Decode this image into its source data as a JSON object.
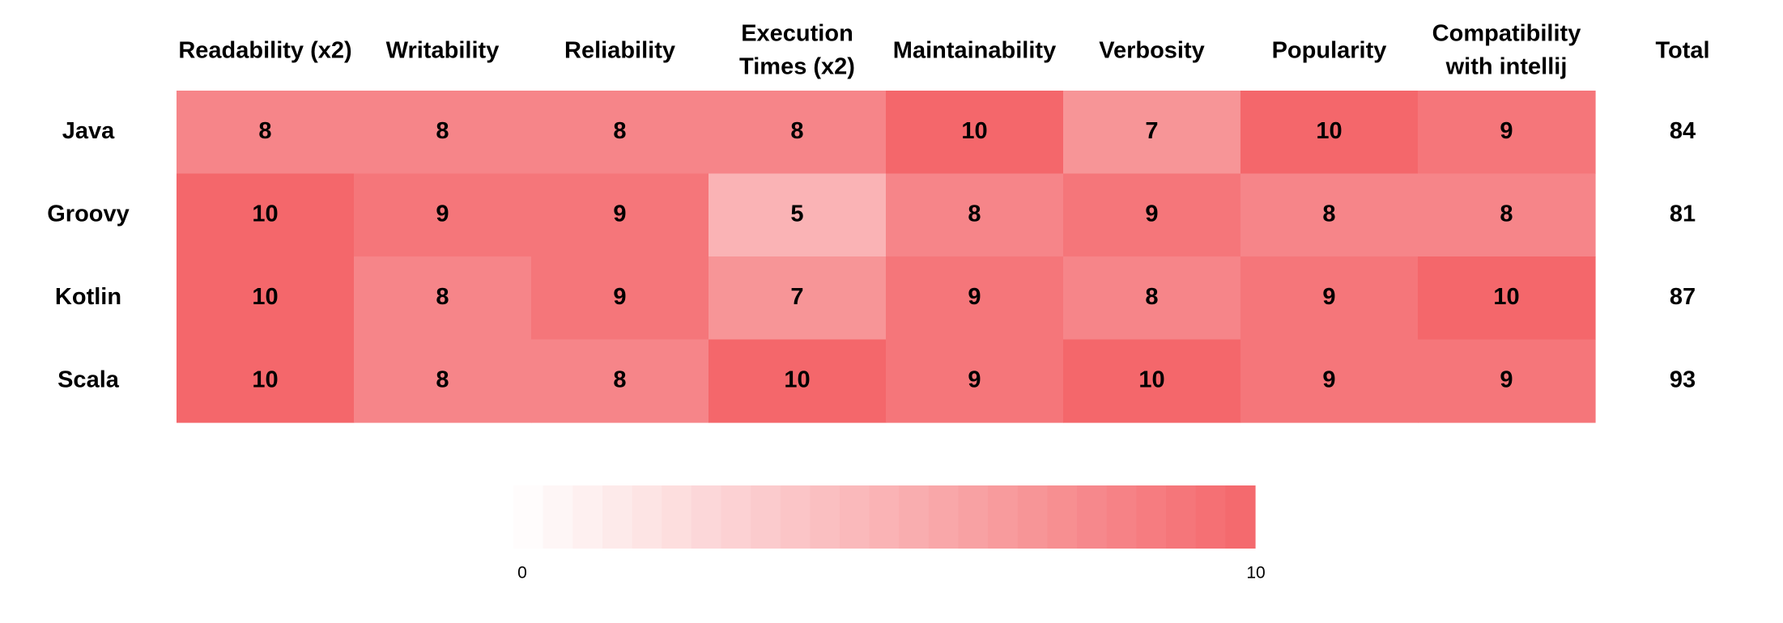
{
  "chart_data": {
    "type": "heatmap",
    "columns": [
      [
        "Readability (x2)"
      ],
      [
        "Writability"
      ],
      [
        "Reliability"
      ],
      [
        "Execution",
        "Times (x2)"
      ],
      [
        "Maintainability"
      ],
      [
        "Verbosity"
      ],
      [
        "Popularity"
      ],
      [
        "Compatibility",
        "with intellij"
      ]
    ],
    "total_header": "Total",
    "rows": [
      "Java",
      "Groovy",
      "Kotlin",
      "Scala"
    ],
    "values": [
      [
        8,
        8,
        8,
        8,
        10,
        7,
        10,
        9
      ],
      [
        10,
        9,
        9,
        5,
        8,
        9,
        8,
        8
      ],
      [
        10,
        8,
        9,
        7,
        9,
        8,
        9,
        10
      ],
      [
        10,
        8,
        8,
        10,
        9,
        10,
        9,
        9
      ]
    ],
    "totals": [
      84,
      81,
      87,
      93
    ],
    "color_scale": {
      "min": 0,
      "max": 10,
      "min_label": "0",
      "max_label": "10",
      "min_color": "#ffffff",
      "max_color": "#f4676b"
    }
  }
}
